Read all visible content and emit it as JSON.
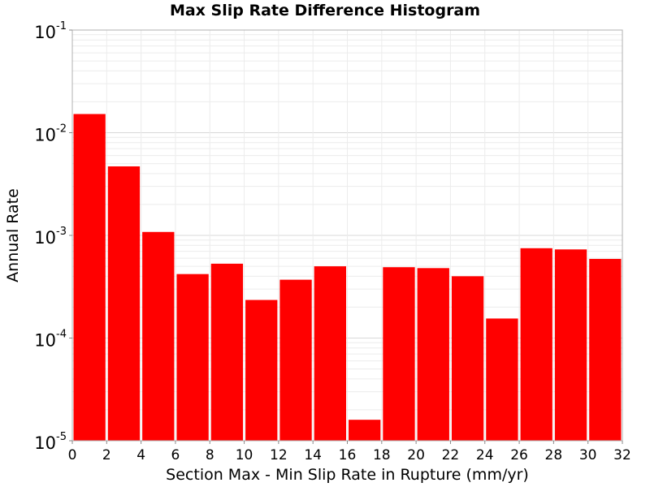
{
  "chart_data": {
    "type": "bar",
    "title": "Max Slip Rate Difference Histogram",
    "xlabel": "Section Max - Min Slip Rate in Rupture (mm/yr)",
    "ylabel": "Annual Rate",
    "x_ticks": [
      "0",
      "2",
      "4",
      "6",
      "8",
      "10",
      "12",
      "14",
      "16",
      "18",
      "20",
      "22",
      "24",
      "26",
      "28",
      "30",
      "32"
    ],
    "xlim": [
      0,
      32
    ],
    "yscale": "log",
    "ylim": [
      1e-05,
      0.1
    ],
    "y_ticks": [
      {
        "base": "10",
        "exp": "-5"
      },
      {
        "base": "10",
        "exp": "-4"
      },
      {
        "base": "10",
        "exp": "-3"
      },
      {
        "base": "10",
        "exp": "-2"
      },
      {
        "base": "10",
        "exp": "-1"
      }
    ],
    "grid": true,
    "bar_color": "#ff0000",
    "bins": [
      {
        "x0": 0,
        "x1": 2,
        "value": 0.0152
      },
      {
        "x0": 2,
        "x1": 4,
        "value": 0.0047
      },
      {
        "x0": 4,
        "x1": 6,
        "value": 0.00108
      },
      {
        "x0": 6,
        "x1": 8,
        "value": 0.00042
      },
      {
        "x0": 8,
        "x1": 10,
        "value": 0.00053
      },
      {
        "x0": 10,
        "x1": 12,
        "value": 0.000235
      },
      {
        "x0": 12,
        "x1": 14,
        "value": 0.00037
      },
      {
        "x0": 14,
        "x1": 16,
        "value": 0.0005
      },
      {
        "x0": 16,
        "x1": 18,
        "value": 1.6e-05
      },
      {
        "x0": 18,
        "x1": 20,
        "value": 0.00049
      },
      {
        "x0": 20,
        "x1": 22,
        "value": 0.00048
      },
      {
        "x0": 22,
        "x1": 24,
        "value": 0.0004
      },
      {
        "x0": 24,
        "x1": 26,
        "value": 0.000155
      },
      {
        "x0": 26,
        "x1": 28,
        "value": 0.00075
      },
      {
        "x0": 28,
        "x1": 30,
        "value": 0.00073
      },
      {
        "x0": 30,
        "x1": 32,
        "value": 0.00059
      }
    ]
  }
}
